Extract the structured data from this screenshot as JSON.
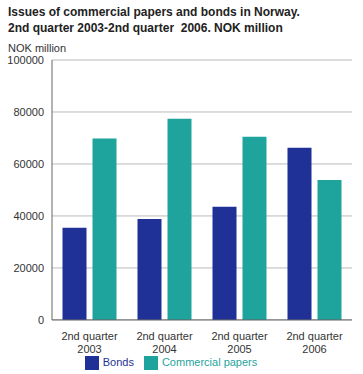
{
  "chart_data": {
    "type": "bar",
    "title": "Issues of commercial papers and bonds in Norway.\n2nd quarter 2003-2nd quarter  2006. NOK million",
    "y_label": "NOK million",
    "categories": [
      "2nd quarter 2003",
      "2nd quarter 2004",
      "2nd quarter 2005",
      "2nd quarter 2006"
    ],
    "series": [
      {
        "name": "Bonds",
        "color": "#1f3096",
        "values": [
          35500,
          38800,
          43500,
          66200
        ]
      },
      {
        "name": "Commercial papers",
        "color": "#1fa39d",
        "values": [
          69800,
          77400,
          70500,
          53800
        ]
      }
    ],
    "ylim": [
      0,
      100000
    ],
    "yticks": [
      0,
      20000,
      40000,
      60000,
      80000,
      100000
    ],
    "grid": true,
    "legend": "bottom"
  }
}
